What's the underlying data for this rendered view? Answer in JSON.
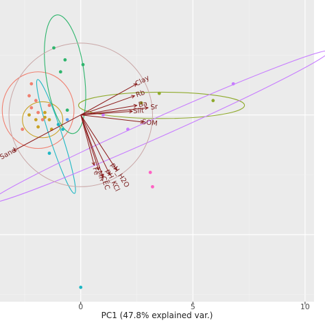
{
  "chart_data": {
    "type": "scatter",
    "title": "",
    "xlabel": "PC1 (47.8% explained var.)",
    "ylabel": "",
    "xlim": [
      -3.6,
      10.4
    ],
    "ylim": [
      -7.8,
      4.8
    ],
    "x_ticks": [
      0,
      5,
      10
    ],
    "x_tick_labels": [
      "0",
      "5",
      "10"
    ],
    "grid": true,
    "legend": "none",
    "colors": {
      "panel": "#ebebeb",
      "grid_major": "#ffffff",
      "grid_minor": "#f4f4f4",
      "arrow": "#8b1a1a",
      "label": "#7a1f1f",
      "correlation_circle": "#c9a6a6"
    },
    "series": [
      {
        "color": "#f08070",
        "points": [
          [
            -2.3,
            0.8
          ],
          [
            -2.2,
            1.3
          ],
          [
            -2.2,
            0.3
          ],
          [
            -2.0,
            0.6
          ],
          [
            -1.9,
            0.1
          ],
          [
            -1.4,
            0.4
          ],
          [
            -2.6,
            -0.6
          ],
          [
            -1.7,
            -0.2
          ]
        ],
        "ellipse": {
          "cx": -1.9,
          "cy": 0.2,
          "rx": 1.6,
          "ry": 1.6,
          "angle": 0
        }
      },
      {
        "color": "#c9a227",
        "points": [
          [
            -2.3,
            0.0
          ],
          [
            -2.0,
            -0.2
          ],
          [
            -1.6,
            -0.1
          ],
          [
            -1.4,
            -0.2
          ],
          [
            -1.3,
            -0.6
          ],
          [
            -1.9,
            -0.5
          ],
          [
            -1.6,
            0.1
          ]
        ],
        "ellipse": {
          "cx": -1.7,
          "cy": -0.2,
          "rx": 0.9,
          "ry": 0.75,
          "angle": 0
        }
      },
      {
        "color": "#8faa2c",
        "points": [
          [
            3.5,
            0.9
          ],
          [
            5.9,
            0.6
          ],
          [
            2.7,
            0.5
          ]
        ],
        "ellipse": {
          "cx": 3.6,
          "cy": 0.4,
          "rx": 3.7,
          "ry": 0.55,
          "angle": 0
        }
      },
      {
        "color": "#2fb56d",
        "points": [
          [
            -1.2,
            2.8
          ],
          [
            -0.7,
            2.3
          ],
          [
            0.1,
            2.1
          ],
          [
            -0.9,
            1.8
          ],
          [
            -0.6,
            0.2
          ]
        ],
        "ellipse": {
          "cx": -0.7,
          "cy": 1.7,
          "rx": 0.85,
          "ry": 2.5,
          "angle": 8
        }
      },
      {
        "color": "#1fb7c4",
        "points": [
          [
            -1.4,
            -1.6
          ],
          [
            -1.0,
            -0.4
          ],
          [
            -0.8,
            -0.6
          ],
          [
            0.0,
            -7.2
          ]
        ],
        "ellipse": {
          "cx": -1.1,
          "cy": -0.9,
          "rx": 0.28,
          "ry": 2.5,
          "angle": 18
        }
      },
      {
        "color": "#5aa0ee",
        "points": [
          [
            -0.6,
            -0.2
          ]
        ],
        "ellipse": null
      },
      {
        "color": "#c77cff",
        "points": [
          [
            6.8,
            1.3
          ],
          [
            2.1,
            -0.6
          ],
          [
            1.0,
            0.0
          ]
        ],
        "ellipse": {
          "cx": 3.5,
          "cy": -0.5,
          "rx": 8.3,
          "ry": 0.4,
          "angle": 24
        }
      },
      {
        "color": "#ff61c3",
        "points": [
          [
            3.1,
            -2.4
          ],
          [
            3.2,
            -3.0
          ]
        ],
        "ellipse": null
      }
    ],
    "correlation_circle": {
      "cx": 0.0,
      "cy": 0.0,
      "r": 3.2
    },
    "loadings": [
      {
        "label": "Clay",
        "x": 2.5,
        "y": 1.3
      },
      {
        "label": "Rb",
        "x": 2.4,
        "y": 0.8
      },
      {
        "label": "Ba",
        "x": 2.5,
        "y": 0.4
      },
      {
        "label": "Sr",
        "x": 3.0,
        "y": 0.3
      },
      {
        "label": "Silt",
        "x": 2.3,
        "y": 0.15
      },
      {
        "label": "SOM",
        "x": 2.8,
        "y": -0.3
      },
      {
        "label": "Sand",
        "x": -3.0,
        "y": -1.5
      },
      {
        "label": "Fe",
        "x": 0.6,
        "y": -2.1
      },
      {
        "label": "Mn",
        "x": 0.8,
        "y": -2.3
      },
      {
        "label": "CEC",
        "x": 1.0,
        "y": -2.6
      },
      {
        "label": "pH_KCl",
        "x": 1.3,
        "y": -2.5
      },
      {
        "label": "pH_H2O",
        "x": 1.6,
        "y": -2.3
      }
    ]
  }
}
